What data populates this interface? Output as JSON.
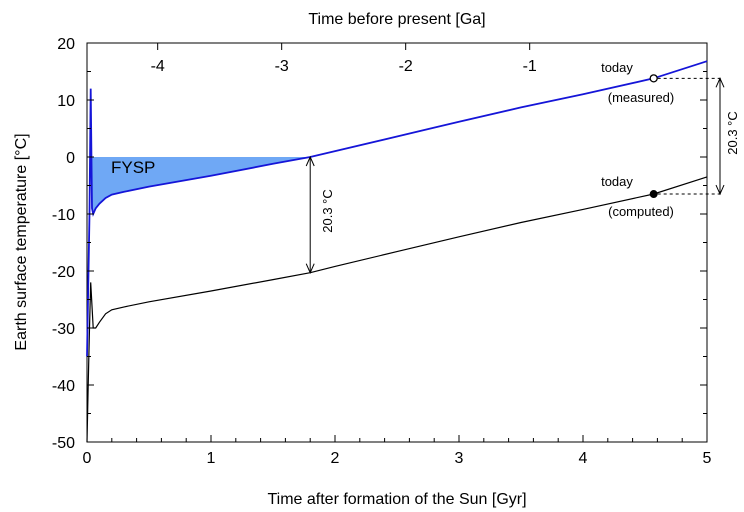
{
  "chart_data": {
    "type": "line",
    "title": "Time before present [Ga]",
    "xlabel": "Time after formation of the Sun [Gyr]",
    "ylabel": "Earth surface temperature [°C]",
    "xlim": [
      0,
      5
    ],
    "ylim": [
      -50,
      20
    ],
    "x_ticks": [
      "0",
      "1",
      "2",
      "3",
      "4",
      "5"
    ],
    "y_ticks": [
      "-50",
      "-40",
      "-30",
      "-20",
      "-10",
      "0",
      "10",
      "20"
    ],
    "top_axis": {
      "label": "Time before present [Ga]",
      "ticks": [
        {
          "label": "-4",
          "x": 0.57
        },
        {
          "label": "-3",
          "x": 1.57
        },
        {
          "label": "-2",
          "x": 2.57
        },
        {
          "label": "-1",
          "x": 3.57
        }
      ]
    },
    "series": [
      {
        "color": "#1515d8",
        "x": [
          0.0,
          0.02,
          0.03,
          0.04,
          0.05,
          0.07,
          0.1,
          0.15,
          0.2,
          0.3,
          0.5,
          1.0,
          1.5,
          1.8,
          2.5,
          3.0,
          3.5,
          4.0,
          4.57,
          5.0
        ],
        "y": [
          -35,
          -10,
          12,
          -9,
          -10,
          -9,
          -8.2,
          -7.2,
          -6.6,
          -6.1,
          -5.2,
          -3.3,
          -1.2,
          0.0,
          3.6,
          6.2,
          8.7,
          11.0,
          13.8,
          16.8
        ]
      },
      {
        "color": "#000000",
        "x": [
          0.0,
          0.01,
          0.02,
          0.03,
          0.05,
          0.07,
          0.1,
          0.15,
          0.2,
          0.3,
          0.5,
          1.0,
          1.5,
          1.8,
          2.0,
          2.5,
          3.0,
          3.5,
          4.0,
          4.57,
          5.0
        ],
        "y": [
          -50,
          -40,
          -30,
          -22,
          -30,
          -30,
          -29,
          -27.5,
          -26.8,
          -26.3,
          -25.4,
          -23.5,
          -21.5,
          -20.3,
          -19.2,
          -16.6,
          -14.0,
          -11.5,
          -9.2,
          -6.5,
          -3.5
        ]
      }
    ],
    "fysp": {
      "label": "FYSP",
      "color": "#6fa8f5",
      "x_end": 1.8
    },
    "annotations": {
      "gap_label": "20.3 °C",
      "gap_x": 1.8,
      "gap_y_top": 0.0,
      "gap_y_bottom": -20.3,
      "side_label": "20.3 °C",
      "side_y_top": 13.8,
      "side_y_bottom": -6.5,
      "today_measured": {
        "x": 4.57,
        "y": 13.8,
        "label": "today",
        "sub": "(measured)"
      },
      "today_computed": {
        "x": 4.57,
        "y": -6.5,
        "label": "today",
        "sub": "(computed)"
      }
    }
  }
}
